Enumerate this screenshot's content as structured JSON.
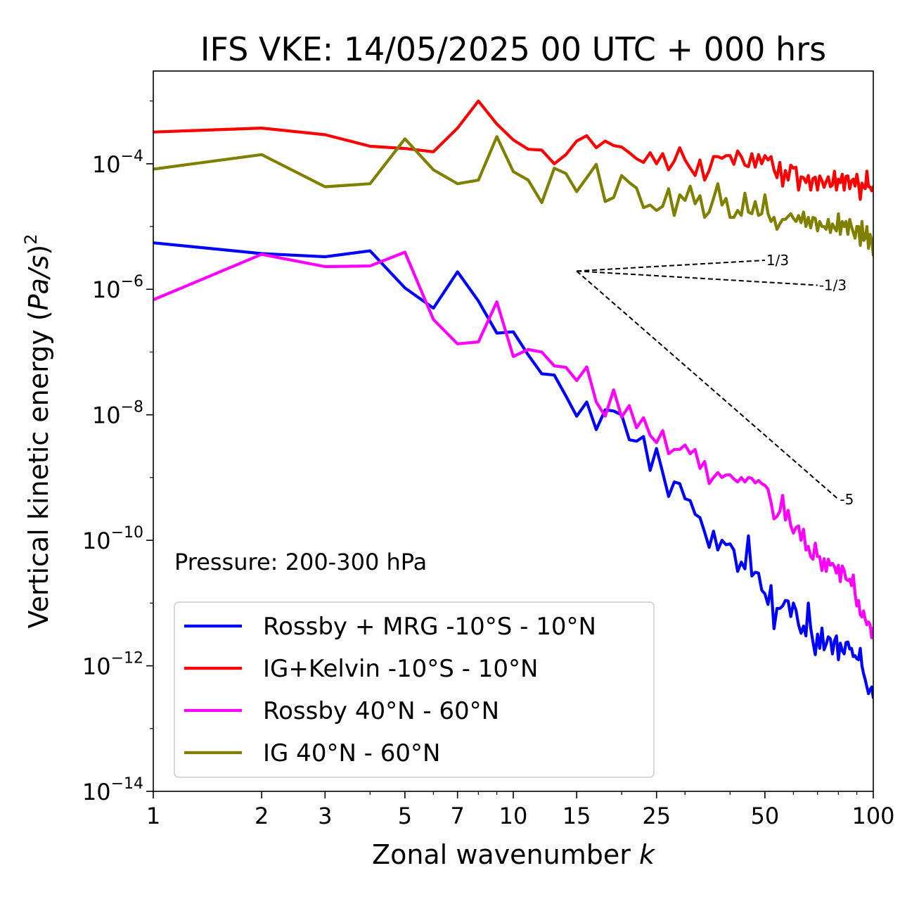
{
  "chart_data": {
    "type": "line",
    "title": "IFS VKE: 14/05/2025 00 UTC + 000 hrs",
    "xlabel": "Zonal wavenumber",
    "xlabel_var": "k",
    "ylabel_parts": {
      "prefix": "Vertical kinetic energy (",
      "var": "Pa/s",
      "suffix": ")",
      "sup": "2"
    },
    "xscale": "log",
    "yscale": "log",
    "xlim": [
      1,
      100
    ],
    "ylim": [
      1e-14,
      0.003
    ],
    "xticks": [
      1,
      2,
      3,
      5,
      7,
      10,
      15,
      25,
      50,
      100
    ],
    "xtick_labels": [
      "1",
      "2",
      "3",
      "5",
      "7",
      "10",
      "15",
      "25",
      "50",
      "100"
    ],
    "yticks": [
      {
        "value": 1e-14,
        "base": "10",
        "exp": "−14"
      },
      {
        "value": 1e-12,
        "base": "10",
        "exp": "−12"
      },
      {
        "value": 1e-10,
        "base": "10",
        "exp": "−10"
      },
      {
        "value": 1e-08,
        "base": "10",
        "exp": "−8"
      },
      {
        "value": 1e-06,
        "base": "10",
        "exp": "−6"
      },
      {
        "value": 0.0001,
        "base": "10",
        "exp": "−4"
      }
    ],
    "annotation": "Pressure: 200-300 hPa",
    "legend_position": "lower-left",
    "series": [
      {
        "name": "Rossby + MRG -10°S - 10°N",
        "color": "#0000ff",
        "x": [
          1,
          2,
          3,
          4,
          5,
          6,
          7,
          8,
          9,
          10,
          11,
          12,
          13,
          14,
          15,
          16,
          17,
          18,
          19,
          20,
          21,
          22,
          23,
          24,
          25,
          26,
          27,
          28,
          29,
          30,
          31,
          32,
          33,
          34,
          35,
          36,
          37,
          38,
          39,
          40,
          41,
          42,
          43,
          44,
          45,
          46,
          47,
          48,
          49,
          50,
          51,
          52,
          53,
          54,
          55,
          56,
          57,
          58,
          59,
          60,
          61,
          62,
          63,
          64,
          65,
          66,
          67,
          68,
          69,
          70,
          71,
          72,
          73,
          74,
          75,
          76,
          77,
          78,
          79,
          80,
          81,
          82,
          83,
          84,
          85,
          86,
          87,
          88,
          89,
          90,
          91,
          92,
          93,
          94,
          95,
          96,
          97,
          98,
          99,
          100
        ],
        "y": [
          5.5e-06,
          3.7e-06,
          3.3e-06,
          4.1e-06,
          1.05e-06,
          5e-07,
          1.9e-06,
          6.5e-07,
          2e-07,
          2.1e-07,
          9e-08,
          4.5e-08,
          4.3e-08,
          2e-08,
          9.5e-09,
          1.6e-08,
          5.8e-09,
          1.2e-08,
          1.15e-08,
          1e-08,
          4e-09,
          3.8e-09,
          4.5e-09,
          1.3e-09,
          2.9e-09,
          1.2e-09,
          5e-10,
          8.5e-10,
          8e-10,
          4.6e-10,
          4.3e-10,
          2.6e-10,
          2.3e-10,
          1.35e-10,
          7.7e-11,
          1.4e-10,
          7e-11,
          1e-10,
          8.5e-11,
          8.8e-11,
          7e-11,
          3.2e-11,
          4.5e-11,
          3.5e-11,
          1.18e-10,
          2.7e-11,
          3.1e-11,
          3e-11,
          1.6e-11,
          1.4e-11,
          9.5e-12,
          1.9e-11,
          3.9e-12,
          8.2e-12,
          8.2e-12,
          9e-12,
          1.1e-11,
          1.08e-11,
          6.1e-12,
          1e-11,
          7.7e-12,
          4.5e-12,
          3.3e-12,
          4.3e-12,
          3e-12,
          1e-11,
          4e-12,
          2.4e-12,
          1.5e-12,
          3.2e-12,
          1.9e-12,
          4e-12,
          1.8e-12,
          2.2e-12,
          2.9e-12,
          2.7e-12,
          1.55e-12,
          2.5e-12,
          3e-12,
          1.25e-12,
          2.3e-12,
          1.75e-12,
          1.55e-12,
          2.35e-12,
          2.4e-12,
          1.85e-12,
          1.9e-12,
          1.4e-12,
          1.45e-12,
          1.3e-12,
          1.25e-12,
          1.9e-12,
          1e-12,
          7.5e-13,
          6e-13,
          4.6e-13,
          3.6e-13,
          4.2e-13,
          4.6e-13,
          3.1e-13
        ]
      },
      {
        "name": "IG+Kelvin -10°S - 10°N",
        "color": "#ff0000",
        "x": [
          1,
          2,
          3,
          4,
          5,
          6,
          7,
          8,
          9,
          10,
          11,
          12,
          13,
          14,
          15,
          16,
          17,
          18,
          19,
          20,
          21,
          22,
          23,
          24,
          25,
          26,
          27,
          28,
          29,
          30,
          31,
          32,
          33,
          34,
          35,
          36,
          37,
          38,
          39,
          40,
          41,
          42,
          43,
          44,
          45,
          46,
          47,
          48,
          49,
          50,
          51,
          52,
          53,
          54,
          55,
          56,
          57,
          58,
          59,
          60,
          61,
          62,
          63,
          64,
          65,
          66,
          67,
          68,
          69,
          70,
          71,
          72,
          73,
          74,
          75,
          76,
          77,
          78,
          79,
          80,
          81,
          82,
          83,
          84,
          85,
          86,
          87,
          88,
          89,
          90,
          91,
          92,
          93,
          94,
          95,
          96,
          97,
          98,
          99,
          100
        ],
        "y": [
          0.00032,
          0.00037,
          0.00029,
          0.00019,
          0.000175,
          0.000155,
          0.00037,
          0.001,
          0.00043,
          0.00024,
          0.00017,
          0.000165,
          0.0001,
          0.00014,
          0.00023,
          0.00028,
          0.00018,
          0.00023,
          0.000195,
          0.000185,
          0.00015,
          0.00012,
          0.000105,
          0.00015,
          0.0001,
          0.000145,
          8e-05,
          0.00011,
          0.00018,
          0.000115,
          8.5e-05,
          6.5e-05,
          0.000115,
          5.5e-05,
          7.8e-05,
          0.00013,
          0.00013,
          0.000122,
          0.000135,
          0.000135,
          9.8e-05,
          0.00016,
          0.00013,
          9.5e-05,
          9e-05,
          0.000145,
          8.8e-05,
          0.00014,
          0.0001,
          0.000135,
          0.000115,
          0.00013,
          8e-05,
          6e-05,
          0.000105,
          4.4e-05,
          7.8e-05,
          5.5e-05,
          9.5e-05,
          8.5e-05,
          8.8e-05,
          3.8e-05,
          6.2e-05,
          6e-05,
          5e-05,
          6.5e-05,
          3.8e-05,
          5.8e-05,
          6.1e-05,
          3.8e-05,
          6.4e-05,
          5.4e-05,
          4.2e-05,
          5.2e-05,
          6.2e-05,
          4.3e-05,
          4.6e-05,
          7.6e-05,
          3.8e-05,
          5.7e-05,
          5e-05,
          6.8e-05,
          3.8e-05,
          6.3e-05,
          6.4e-05,
          4e-05,
          5.3e-05,
          5.7e-05,
          4.4e-05,
          6.8e-05,
          4.8e-05,
          2.7e-05,
          4.9e-05,
          4.3e-05,
          4e-05,
          7.6e-05,
          4.3e-05,
          4.3e-05,
          3.7e-05,
          4.3e-05
        ]
      },
      {
        "name": "Rossby 40°N - 60°N",
        "color": "#ff00ff",
        "x": [
          1,
          2,
          3,
          4,
          5,
          6,
          7,
          8,
          9,
          10,
          11,
          12,
          13,
          14,
          15,
          16,
          17,
          18,
          19,
          20,
          21,
          22,
          23,
          24,
          25,
          26,
          27,
          28,
          29,
          30,
          31,
          32,
          33,
          34,
          35,
          36,
          37,
          38,
          39,
          40,
          41,
          42,
          43,
          44,
          45,
          46,
          47,
          48,
          49,
          50,
          51,
          52,
          53,
          54,
          55,
          56,
          57,
          58,
          59,
          60,
          61,
          62,
          63,
          64,
          65,
          66,
          67,
          68,
          69,
          70,
          71,
          72,
          73,
          74,
          75,
          76,
          77,
          78,
          79,
          80,
          81,
          82,
          83,
          84,
          85,
          86,
          87,
          88,
          89,
          90,
          91,
          92,
          93,
          94,
          95,
          96,
          97,
          98,
          99,
          100
        ],
        "y": [
          6.8e-07,
          3.6e-06,
          2.3e-06,
          2.35e-06,
          3.9e-06,
          3.3e-07,
          1.35e-07,
          1.45e-07,
          6.3e-07,
          8.5e-08,
          1.1e-07,
          1e-07,
          6e-08,
          5.7e-08,
          3.5e-08,
          5.8e-08,
          1.6e-08,
          9.5e-09,
          2.5e-08,
          9.2e-09,
          1.4e-08,
          6.2e-09,
          9e-09,
          4.7e-09,
          3.6e-09,
          5.6e-09,
          2.4e-09,
          2.8e-09,
          2.8e-09,
          3.3e-09,
          2.4e-09,
          2.8e-09,
          1.4e-09,
          1.8e-09,
          8e-10,
          1e-09,
          1.2e-09,
          1e-09,
          1.1e-09,
          1.1e-09,
          9.5e-10,
          8.5e-10,
          1e-09,
          8.5e-10,
          1e-09,
          9.7e-10,
          8.2e-10,
          9e-10,
          8e-10,
          7.5e-10,
          6.5e-10,
          4e-10,
          2.2e-10,
          2.4e-10,
          2.9e-10,
          5.2e-10,
          2.1e-10,
          3e-10,
          1.7e-10,
          1.3e-10,
          1.6e-10,
          1.7e-10,
          1e-10,
          1.5e-10,
          7e-11,
          8e-11,
          5.5e-11,
          5e-11,
          9e-11,
          5.5e-11,
          5.5e-11,
          3.3e-11,
          5.1e-11,
          3.2e-11,
          5e-11,
          4e-11,
          4.3e-11,
          3.8e-11,
          3e-11,
          4e-11,
          2.2e-11,
          3.9e-11,
          3.3e-11,
          2.4e-11,
          2.3e-11,
          2.4e-11,
          1.9e-11,
          2.8e-11,
          1.4e-11,
          9e-12,
          1.1e-11,
          6.5e-12,
          6e-12,
          7.5e-12,
          5.5e-12,
          4.5e-12,
          5e-12,
          4.5e-12,
          2.8e-12,
          4e-12
        ]
      },
      {
        "name": "IG 40°N - 60°N",
        "color": "#808000",
        "x": [
          1,
          2,
          3,
          4,
          5,
          6,
          7,
          8,
          9,
          10,
          11,
          12,
          13,
          14,
          15,
          16,
          17,
          18,
          19,
          20,
          21,
          22,
          23,
          24,
          25,
          26,
          27,
          28,
          29,
          30,
          31,
          32,
          33,
          34,
          35,
          36,
          37,
          38,
          39,
          40,
          41,
          42,
          43,
          44,
          45,
          46,
          47,
          48,
          49,
          50,
          51,
          52,
          53,
          54,
          55,
          56,
          57,
          58,
          59,
          60,
          61,
          62,
          63,
          64,
          65,
          66,
          67,
          68,
          69,
          70,
          71,
          72,
          73,
          74,
          75,
          76,
          77,
          78,
          79,
          80,
          81,
          82,
          83,
          84,
          85,
          86,
          87,
          88,
          89,
          90,
          91,
          92,
          93,
          94,
          95,
          96,
          97,
          98,
          99,
          100
        ],
        "y": [
          8.2e-05,
          0.00014,
          4.3e-05,
          4.8e-05,
          0.00025,
          8e-05,
          4.8e-05,
          5.5e-05,
          0.00027,
          7.5e-05,
          5.5e-05,
          2.4e-05,
          8.5e-05,
          7e-05,
          3.6e-05,
          6e-05,
          9.8e-05,
          2.5e-05,
          2.9e-05,
          6.5e-05,
          5e-05,
          4.1e-05,
          2e-05,
          2.2e-05,
          1.8e-05,
          2.1e-05,
          4e-05,
          1.5e-05,
          3.2e-05,
          2.6e-05,
          4.4e-05,
          2.3e-05,
          3.1e-05,
          1.4e-05,
          1.7e-05,
          2.8e-05,
          4.8e-05,
          2.2e-05,
          2.8e-05,
          1.4e-05,
          1.4e-05,
          1.8e-05,
          1.5e-05,
          3.4e-05,
          1.7e-05,
          1.6e-05,
          2.5e-05,
          1.5e-05,
          1.6e-05,
          3.2e-05,
          1.6e-05,
          1.2e-05,
          1.4e-05,
          9e-06,
          1.1e-05,
          1.3e-05,
          1.3e-05,
          1.45e-05,
          1.6e-05,
          1.35e-05,
          1.2e-05,
          1.5e-05,
          1.15e-05,
          1.7e-05,
          1e-05,
          1.4e-05,
          9.5e-06,
          1.4e-05,
          1.35e-05,
          8.5e-06,
          1.2e-05,
          1e-05,
          1e-05,
          9e-06,
          1.3e-05,
          8e-06,
          1.1e-05,
          9.5e-06,
          8.5e-06,
          1.6e-05,
          7.5e-06,
          1.2e-05,
          1e-05,
          1.2e-05,
          7.5e-06,
          1.3e-05,
          1e-05,
          8e-06,
          6.5e-06,
          1e-05,
          1e-05,
          5e-06,
          1.2e-05,
          6e-06,
          6.5e-06,
          1e-05,
          4.5e-06,
          7.5e-06,
          6e-06,
          3.5e-06
        ]
      }
    ],
    "reference_lines": [
      {
        "label": "1/3",
        "x": [
          15,
          50
        ],
        "y": [
          1.95e-06,
          2.9e-06
        ]
      },
      {
        "label": "-1/3",
        "x": [
          15,
          70
        ],
        "y": [
          1.95e-06,
          1.16e-06
        ]
      },
      {
        "label": "-5",
        "x": [
          15,
          80
        ],
        "y": [
          1.95e-06,
          4.5e-10
        ]
      }
    ]
  }
}
